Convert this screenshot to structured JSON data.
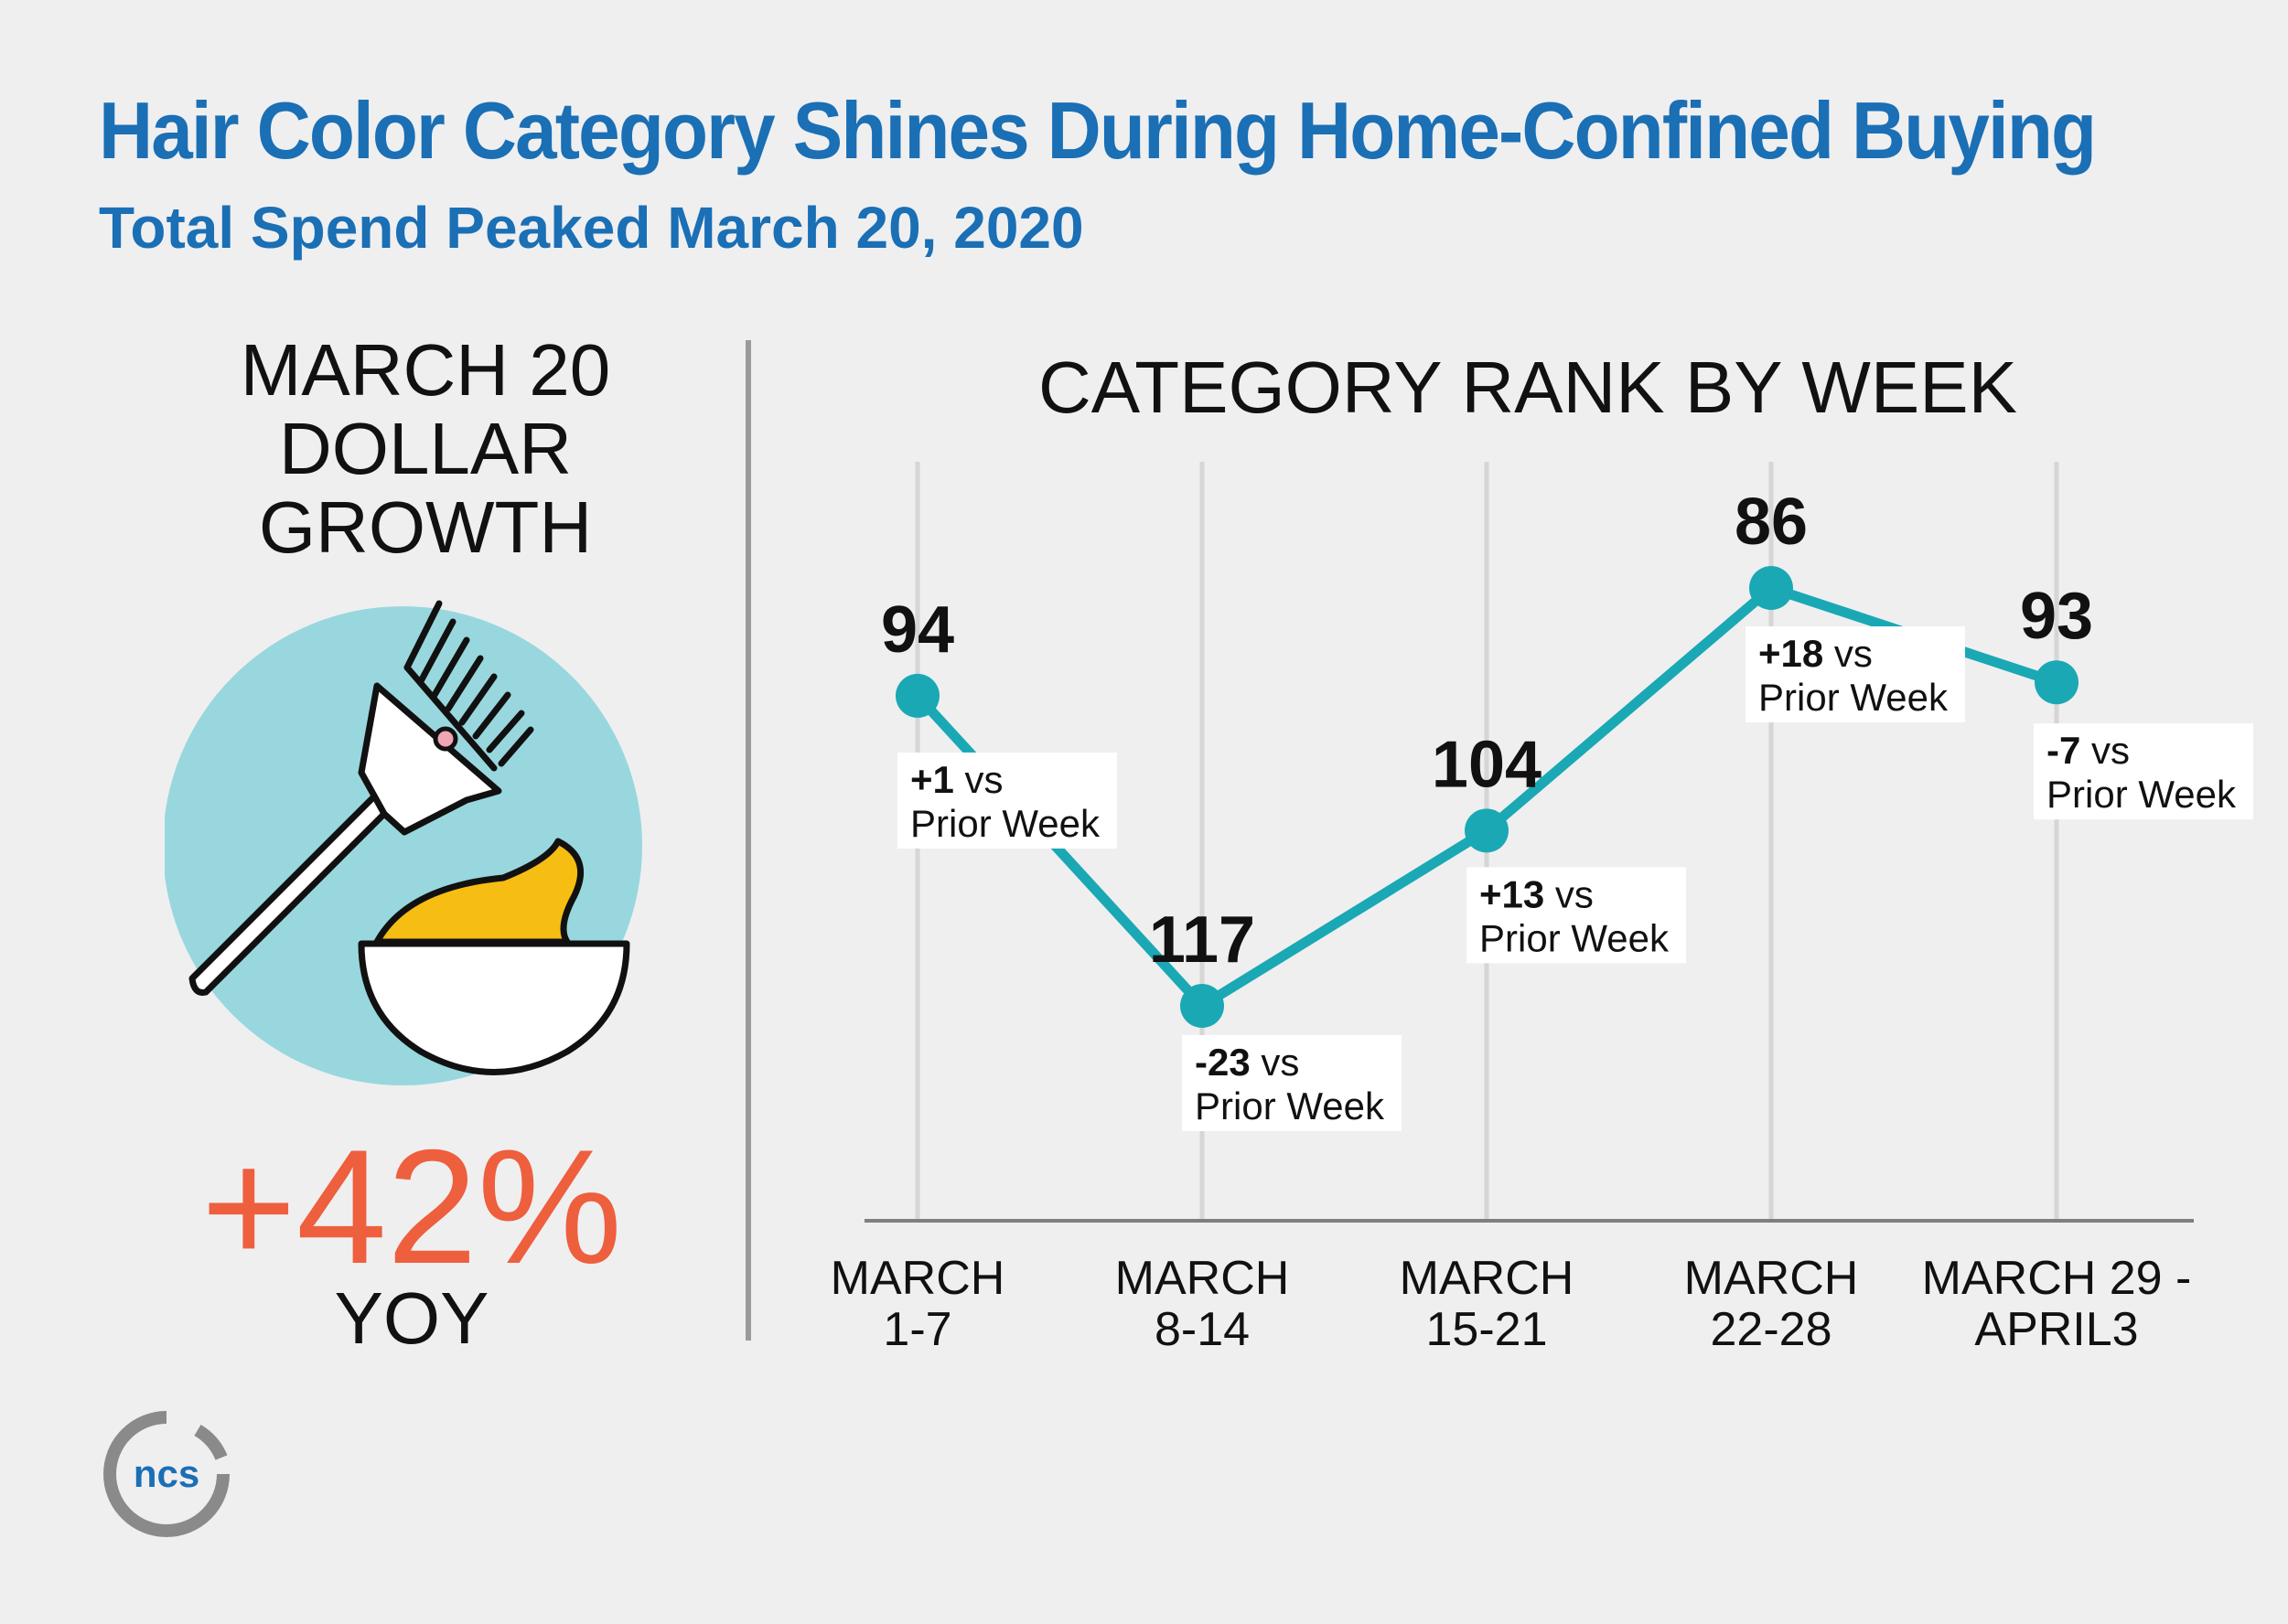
{
  "header": {
    "title": "Hair Color Category Shines During Home-Confined Buying",
    "subtitle": "Total Spend Peaked March 20, 2020"
  },
  "left_panel": {
    "heading_line1": "MARCH 20",
    "heading_line2": "DOLLAR",
    "heading_line3": "GROWTH",
    "growth_value": "+42%",
    "growth_label": "YOY"
  },
  "logo": {
    "text": "ncs"
  },
  "colors": {
    "title": "#1a6fb5",
    "accent_line": "#1aa8b5",
    "growth": "#ee5f3e",
    "circle": "#99d7de",
    "dye": "#f6bd12"
  },
  "chart_data": {
    "type": "line",
    "title": "CATEGORY RANK BY WEEK",
    "y_inverted": true,
    "categories": [
      "MARCH 1-7",
      "MARCH 8-14",
      "MARCH 15-21",
      "MARCH 22-28",
      "MARCH 29 - APRIL3"
    ],
    "category_lines": [
      [
        "MARCH",
        "1-7"
      ],
      [
        "MARCH",
        "8-14"
      ],
      [
        "MARCH",
        "15-21"
      ],
      [
        "MARCH",
        "22-28"
      ],
      [
        "MARCH 29 -",
        "APRIL3"
      ]
    ],
    "values": [
      94,
      117,
      104,
      86,
      93
    ],
    "value_labels": [
      "94",
      "117",
      "104",
      "86",
      "93"
    ],
    "changes": [
      "+1",
      "-23",
      "+13",
      "+18",
      "-7"
    ],
    "change_suffix": "vs",
    "change_line2": "Prior Week",
    "grid": true
  }
}
